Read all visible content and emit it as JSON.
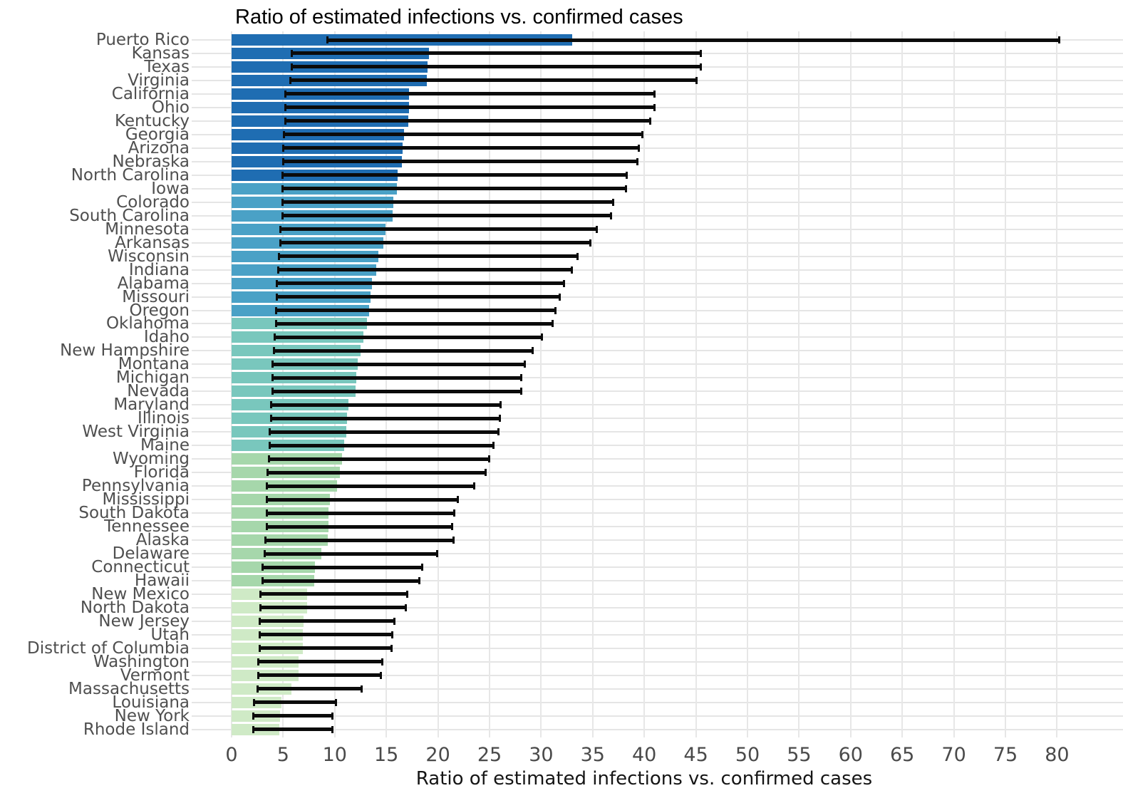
{
  "title": {
    "text": "Ratio of estimated infections vs. confirmed cases"
  },
  "x_axis": {
    "label": "Ratio of estimated infections vs. confirmed cases",
    "ticks": [
      0,
      5,
      10,
      15,
      20,
      25,
      30,
      35,
      40,
      45,
      50,
      55,
      60,
      65,
      70,
      75,
      80
    ]
  },
  "colors": {
    "background": "#ffffff",
    "gridline": "#e7e7e7",
    "row_leader_line": "#e5e5e5",
    "error_bar": "#0b0b0b",
    "title_text": "#000000",
    "axis_text": "#4a4a4a",
    "state_label_text": "#4f4f4f",
    "band_colors": [
      "#1f6db2",
      "#4aa1c6",
      "#79c7bd",
      "#a6d7ab",
      "#cfeac6"
    ]
  },
  "chart_data": {
    "type": "bar",
    "orientation": "horizontal",
    "title": "Ratio of estimated infections vs. confirmed cases",
    "xlabel": "Ratio of estimated infections vs. confirmed cases",
    "ylabel": "",
    "xlim": [
      0,
      86
    ],
    "xticks": [
      0,
      5,
      10,
      15,
      20,
      25,
      30,
      35,
      40,
      45,
      50,
      55,
      60,
      65,
      70,
      75,
      80
    ],
    "grid": true,
    "legend": false,
    "error_bars": true,
    "color_bands": [
      {
        "start_index": 0,
        "end_index": 10,
        "color": "#1f6db2"
      },
      {
        "start_index": 11,
        "end_index": 20,
        "color": "#4aa1c6"
      },
      {
        "start_index": 21,
        "end_index": 30,
        "color": "#79c7bd"
      },
      {
        "start_index": 31,
        "end_index": 40,
        "color": "#a6d7ab"
      },
      {
        "start_index": 41,
        "end_index": 51,
        "color": "#cfeac6"
      }
    ],
    "points": [
      {
        "state": "Puerto Rico",
        "value": 33.0,
        "ci_low": 9.2,
        "ci_high": 80.3
      },
      {
        "state": "Kansas",
        "value": 19.1,
        "ci_low": 5.7,
        "ci_high": 45.6
      },
      {
        "state": "Texas",
        "value": 19.0,
        "ci_low": 5.7,
        "ci_high": 45.6
      },
      {
        "state": "Virginia",
        "value": 18.9,
        "ci_low": 5.6,
        "ci_high": 45.2
      },
      {
        "state": "California",
        "value": 17.2,
        "ci_low": 5.1,
        "ci_high": 41.1
      },
      {
        "state": "Ohio",
        "value": 17.2,
        "ci_low": 5.1,
        "ci_high": 41.1
      },
      {
        "state": "Kentucky",
        "value": 17.1,
        "ci_low": 5.1,
        "ci_high": 40.7
      },
      {
        "state": "Georgia",
        "value": 16.7,
        "ci_low": 5.0,
        "ci_high": 39.9
      },
      {
        "state": "Arizona",
        "value": 16.6,
        "ci_low": 4.9,
        "ci_high": 39.6
      },
      {
        "state": "Nebraska",
        "value": 16.5,
        "ci_low": 4.9,
        "ci_high": 39.4
      },
      {
        "state": "North Carolina",
        "value": 16.1,
        "ci_low": 4.8,
        "ci_high": 38.4
      },
      {
        "state": "Iowa",
        "value": 16.0,
        "ci_low": 4.8,
        "ci_high": 38.3
      },
      {
        "state": "Colorado",
        "value": 15.7,
        "ci_low": 4.8,
        "ci_high": 37.1
      },
      {
        "state": "South Carolina",
        "value": 15.6,
        "ci_low": 4.8,
        "ci_high": 36.9
      },
      {
        "state": "Minnesota",
        "value": 14.9,
        "ci_low": 4.6,
        "ci_high": 35.5
      },
      {
        "state": "Arkansas",
        "value": 14.7,
        "ci_low": 4.6,
        "ci_high": 34.9
      },
      {
        "state": "Wisconsin",
        "value": 14.2,
        "ci_low": 4.5,
        "ci_high": 33.6
      },
      {
        "state": "Indiana",
        "value": 14.0,
        "ci_low": 4.4,
        "ci_high": 33.1
      },
      {
        "state": "Alabama",
        "value": 13.6,
        "ci_low": 4.3,
        "ci_high": 32.3
      },
      {
        "state": "Missouri",
        "value": 13.5,
        "ci_low": 4.3,
        "ci_high": 31.9
      },
      {
        "state": "Oregon",
        "value": 13.3,
        "ci_low": 4.2,
        "ci_high": 31.5
      },
      {
        "state": "Oklahoma",
        "value": 13.1,
        "ci_low": 4.2,
        "ci_high": 31.2
      },
      {
        "state": "Idaho",
        "value": 12.8,
        "ci_low": 4.1,
        "ci_high": 30.2
      },
      {
        "state": "New Hampshire",
        "value": 12.5,
        "ci_low": 4.0,
        "ci_high": 29.3
      },
      {
        "state": "Montana",
        "value": 12.2,
        "ci_low": 3.9,
        "ci_high": 28.5
      },
      {
        "state": "Michigan",
        "value": 12.1,
        "ci_low": 3.9,
        "ci_high": 28.2
      },
      {
        "state": "Nevada",
        "value": 12.0,
        "ci_low": 3.9,
        "ci_high": 28.2
      },
      {
        "state": "Maryland",
        "value": 11.3,
        "ci_low": 3.7,
        "ci_high": 26.2
      },
      {
        "state": "Illinois",
        "value": 11.2,
        "ci_low": 3.7,
        "ci_high": 26.1
      },
      {
        "state": "West Virginia",
        "value": 11.1,
        "ci_low": 3.6,
        "ci_high": 26.0
      },
      {
        "state": "Maine",
        "value": 10.9,
        "ci_low": 3.6,
        "ci_high": 25.5
      },
      {
        "state": "Wyoming",
        "value": 10.7,
        "ci_low": 3.5,
        "ci_high": 25.1
      },
      {
        "state": "Florida",
        "value": 10.5,
        "ci_low": 3.4,
        "ci_high": 24.7
      },
      {
        "state": "Pennsylvania",
        "value": 10.2,
        "ci_low": 3.3,
        "ci_high": 23.6
      },
      {
        "state": "Mississippi",
        "value": 9.5,
        "ci_low": 3.3,
        "ci_high": 22.0
      },
      {
        "state": "South Dakota",
        "value": 9.4,
        "ci_low": 3.3,
        "ci_high": 21.7
      },
      {
        "state": "Tennessee",
        "value": 9.4,
        "ci_low": 3.3,
        "ci_high": 21.5
      },
      {
        "state": "Alaska",
        "value": 9.3,
        "ci_low": 3.2,
        "ci_high": 21.6
      },
      {
        "state": "Delaware",
        "value": 8.7,
        "ci_low": 3.1,
        "ci_high": 20.0
      },
      {
        "state": "Connecticut",
        "value": 8.1,
        "ci_low": 2.9,
        "ci_high": 18.6
      },
      {
        "state": "Hawaii",
        "value": 8.0,
        "ci_low": 2.9,
        "ci_high": 18.3
      },
      {
        "state": "New Mexico",
        "value": 7.3,
        "ci_low": 2.7,
        "ci_high": 17.1
      },
      {
        "state": "North Dakota",
        "value": 7.3,
        "ci_low": 2.7,
        "ci_high": 17.0
      },
      {
        "state": "New Jersey",
        "value": 7.0,
        "ci_low": 2.6,
        "ci_high": 15.9
      },
      {
        "state": "Utah",
        "value": 6.9,
        "ci_low": 2.6,
        "ci_high": 15.7
      },
      {
        "state": "District of Columbia",
        "value": 6.9,
        "ci_low": 2.6,
        "ci_high": 15.6
      },
      {
        "state": "Washington",
        "value": 6.5,
        "ci_low": 2.5,
        "ci_high": 14.7
      },
      {
        "state": "Vermont",
        "value": 6.5,
        "ci_low": 2.5,
        "ci_high": 14.6
      },
      {
        "state": "Massachusetts",
        "value": 5.8,
        "ci_low": 2.4,
        "ci_high": 12.7
      },
      {
        "state": "Louisiana",
        "value": 4.8,
        "ci_low": 2.1,
        "ci_high": 10.2
      },
      {
        "state": "New York",
        "value": 4.7,
        "ci_low": 2.0,
        "ci_high": 9.9
      },
      {
        "state": "Rhode Island",
        "value": 4.6,
        "ci_low": 2.0,
        "ci_high": 9.9
      }
    ]
  }
}
